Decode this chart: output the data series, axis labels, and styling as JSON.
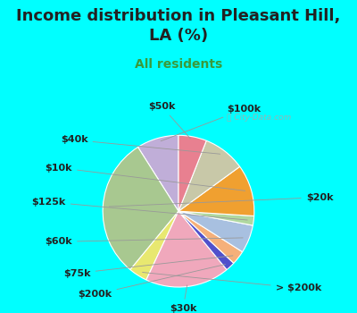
{
  "title": "Income distribution in Pleasant Hill,\nLA (%)",
  "subtitle": "All residents",
  "background_top": "#00FFFF",
  "background_chart_color": "#daeee5",
  "labels": [
    "$100k",
    "$20k",
    "> $200k",
    "$30k",
    "$200k",
    "$75k",
    "$60k",
    "$125k",
    "$10k",
    "$40k",
    "$50k"
  ],
  "values": [
    9,
    30,
    4,
    18,
    2,
    3,
    6,
    2,
    11,
    9,
    6
  ],
  "colors": [
    "#c0aed8",
    "#a8c890",
    "#e8e870",
    "#f0a8bc",
    "#5050cc",
    "#f5b07a",
    "#a8c0e0",
    "#b0d8a0",
    "#f0a030",
    "#c8c8a8",
    "#e88090"
  ],
  "label_fontsize": 8,
  "title_fontsize": 13,
  "subtitle_fontsize": 10,
  "title_color": "#222222",
  "subtitle_color": "#3a9a3a",
  "watermark": "City-Data.com"
}
